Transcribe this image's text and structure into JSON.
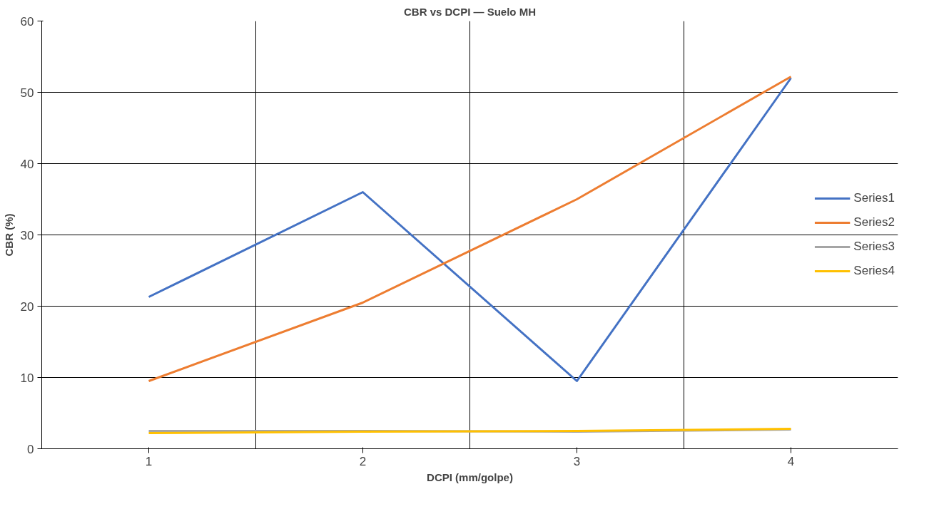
{
  "chart_data": {
    "type": "line",
    "title": "CBR vs DCPI — Suelo MH",
    "xlabel": "DCPI (mm/golpe)",
    "ylabel": "CBR (%)",
    "categories": [
      "1",
      "2",
      "3",
      "4"
    ],
    "series": [
      {
        "name": "Series1",
        "color": "#4472c4",
        "values": [
          21.3,
          36,
          9.5,
          52
        ]
      },
      {
        "name": "Series2",
        "color": "#ed7d31",
        "values": [
          9.5,
          20.5,
          35,
          52.2
        ]
      },
      {
        "name": "Series3",
        "color": "#a5a5a5",
        "values": [
          2.5,
          2.5,
          2.4,
          2.7
        ]
      },
      {
        "name": "Series4",
        "color": "#ffc000",
        "values": [
          2.2,
          2.4,
          2.5,
          2.8
        ]
      }
    ],
    "ylim": [
      0,
      60
    ],
    "yticks": [
      0,
      10,
      20,
      30,
      40,
      50,
      60
    ],
    "grid": true,
    "legend": "right",
    "marker": "none",
    "line_style": "solid"
  }
}
